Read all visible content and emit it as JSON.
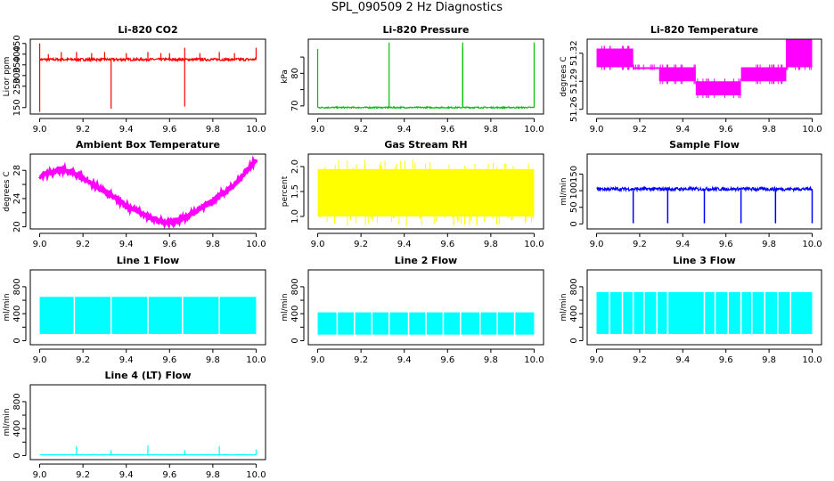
{
  "page": {
    "title": "SPL_090509  2 Hz Diagnostics"
  },
  "chart_data": [
    {
      "id": "co2",
      "type": "line",
      "title": "Li-820 CO2",
      "ylabel": "Licor ppm",
      "color": "#ff0000",
      "xlim": [
        9.0,
        10.0
      ],
      "ylim": [
        120,
        470
      ],
      "xticks": [
        9.0,
        9.2,
        9.4,
        9.6,
        9.8,
        10.0
      ],
      "xtick_labels": [
        "9.0",
        "9.2",
        "9.4",
        "9.6",
        "9.8",
        "10.0"
      ],
      "yticks": [
        150,
        250,
        300,
        350,
        400,
        450
      ],
      "ytick_labels": [
        "150",
        "250",
        "300",
        "350",
        "400",
        "450"
      ],
      "baseline": 375,
      "noise": 6,
      "spikes": [
        [
          9.0,
          450
        ],
        [
          9.0,
          130
        ],
        [
          9.04,
          400
        ],
        [
          9.1,
          410
        ],
        [
          9.17,
          410
        ],
        [
          9.24,
          405
        ],
        [
          9.3,
          410
        ],
        [
          9.33,
          145
        ],
        [
          9.4,
          405
        ],
        [
          9.5,
          410
        ],
        [
          9.56,
          405
        ],
        [
          9.6,
          405
        ],
        [
          9.67,
          155
        ],
        [
          9.67,
          430
        ],
        [
          9.74,
          405
        ],
        [
          9.83,
          410
        ],
        [
          9.9,
          405
        ],
        [
          10.0,
          430
        ]
      ]
    },
    {
      "id": "pressure",
      "type": "line",
      "title": "Li-820 Pressure",
      "ylabel": "kPa",
      "color": "#00c000",
      "xlim": [
        9.0,
        10.0
      ],
      "ylim": [
        67.5,
        90.5
      ],
      "xticks": [
        9.0,
        9.2,
        9.4,
        9.6,
        9.8,
        10.0
      ],
      "xtick_labels": [
        "9.0",
        "9.2",
        "9.4",
        "9.6",
        "9.8",
        "10.0"
      ],
      "yticks": [
        70,
        75,
        80,
        85
      ],
      "ytick_labels": [
        "70",
        "",
        "80",
        ""
      ],
      "baseline": 69.5,
      "noise": 0.2,
      "spikes": [
        [
          9.0,
          87.5
        ],
        [
          9.33,
          89.5
        ],
        [
          9.67,
          89.5
        ],
        [
          9.67,
          88
        ],
        [
          10.0,
          89.5
        ]
      ]
    },
    {
      "id": "licor-temp",
      "type": "area",
      "title": "Li-820 Temperature",
      "ylabel": "degrees C",
      "color": "#ff00ff",
      "xlim": [
        9.0,
        10.0
      ],
      "ylim": [
        51.255,
        51.335
      ],
      "xticks": [
        9.0,
        9.2,
        9.4,
        9.6,
        9.8,
        10.0
      ],
      "xtick_labels": [
        "9.0",
        "9.2",
        "9.4",
        "9.6",
        "9.8",
        "10.0"
      ],
      "yticks": [
        51.26,
        51.29,
        51.32
      ],
      "ytick_labels": [
        "51.26",
        "51.29",
        "51.32"
      ],
      "bands": [
        [
          9.0,
          9.17,
          51.305,
          51.325
        ],
        [
          9.17,
          9.29,
          51.305,
          51.305
        ],
        [
          9.29,
          9.46,
          51.29,
          51.305
        ],
        [
          9.46,
          9.67,
          51.275,
          51.29
        ],
        [
          9.67,
          9.88,
          51.29,
          51.305
        ],
        [
          9.88,
          10.0,
          51.305,
          51.335
        ]
      ]
    },
    {
      "id": "box-temp",
      "type": "line",
      "title": "Ambient Box Temperature",
      "ylabel": "degrees C",
      "color": "#ff00ff",
      "xlim": [
        9.0,
        10.0
      ],
      "ylim": [
        19.7,
        30.3
      ],
      "xticks": [
        9.0,
        9.2,
        9.4,
        9.6,
        9.8,
        10.0
      ],
      "xtick_labels": [
        "9.0",
        "9.2",
        "9.4",
        "9.6",
        "9.8",
        "10.0"
      ],
      "yticks": [
        20,
        22,
        24,
        26,
        28
      ],
      "ytick_labels": [
        "20",
        "",
        "24",
        "",
        "28"
      ],
      "points": [
        [
          9.0,
          27.0
        ],
        [
          9.05,
          27.8
        ],
        [
          9.1,
          28.1
        ],
        [
          9.15,
          27.7
        ],
        [
          9.2,
          26.9
        ],
        [
          9.3,
          25.0
        ],
        [
          9.4,
          23.0
        ],
        [
          9.5,
          21.4
        ],
        [
          9.55,
          20.8
        ],
        [
          9.6,
          20.6
        ],
        [
          9.65,
          21.0
        ],
        [
          9.7,
          21.8
        ],
        [
          9.8,
          23.6
        ],
        [
          9.9,
          26.0
        ],
        [
          10.0,
          29.5
        ]
      ],
      "noise": 0.25
    },
    {
      "id": "rh",
      "type": "area",
      "title": "Gas Stream RH",
      "ylabel": "percent",
      "color": "#ffff00",
      "xlim": [
        9.0,
        10.0
      ],
      "ylim": [
        0.75,
        2.25
      ],
      "xticks": [
        9.0,
        9.2,
        9.4,
        9.6,
        9.8,
        10.0
      ],
      "xtick_labels": [
        "9.0",
        "9.2",
        "9.4",
        "9.6",
        "9.8",
        "10.0"
      ],
      "yticks": [
        1.0,
        1.5,
        2.0
      ],
      "ytick_labels": [
        "1.0",
        "1.5",
        "2.0"
      ],
      "band_low": 1.0,
      "band_high": 1.95,
      "extreme_low": 0.8,
      "extreme_high": 2.15
    },
    {
      "id": "sample-flow",
      "type": "line",
      "title": "Sample Flow",
      "ylabel": "ml/min",
      "color": "#0000ff",
      "xlim": [
        9.0,
        10.0
      ],
      "ylim": [
        -15,
        210
      ],
      "xticks": [
        9.0,
        9.2,
        9.4,
        9.6,
        9.8,
        10.0
      ],
      "xtick_labels": [
        "9.0",
        "9.2",
        "9.4",
        "9.6",
        "9.8",
        "10.0"
      ],
      "yticks": [
        0,
        50,
        100,
        150
      ],
      "ytick_labels": [
        "0",
        "50",
        "100",
        "150"
      ],
      "baseline": 105,
      "noise": 5,
      "dips": [
        9.17,
        9.33,
        9.5,
        9.67,
        9.83,
        10.0
      ],
      "dip_value": 2
    },
    {
      "id": "line1",
      "type": "area",
      "title": "Line 1 Flow",
      "ylabel": "ml/min",
      "color": "#00ffff",
      "xlim": [
        9.0,
        10.0
      ],
      "ylim": [
        -60,
        1050
      ],
      "xticks": [
        9.0,
        9.2,
        9.4,
        9.6,
        9.8,
        10.0
      ],
      "xtick_labels": [
        "9.0",
        "9.2",
        "9.4",
        "9.6",
        "9.8",
        "10.0"
      ],
      "yticks": [
        0,
        200,
        400,
        600,
        800
      ],
      "ytick_labels": [
        "0",
        "",
        "400",
        "",
        "800"
      ],
      "band_low": 100,
      "band_high": 650,
      "gaps": [
        9.16,
        9.33,
        9.5,
        9.66,
        9.83
      ]
    },
    {
      "id": "line2",
      "type": "area",
      "title": "Line 2 Flow",
      "ylabel": "ml/min",
      "color": "#00ffff",
      "xlim": [
        9.0,
        10.0
      ],
      "ylim": [
        -60,
        1050
      ],
      "xticks": [
        9.0,
        9.2,
        9.4,
        9.6,
        9.8,
        10.0
      ],
      "xtick_labels": [
        "9.0",
        "9.2",
        "9.4",
        "9.6",
        "9.8",
        "10.0"
      ],
      "yticks": [
        0,
        200,
        400,
        600,
        800
      ],
      "ytick_labels": [
        "0",
        "",
        "400",
        "",
        "800"
      ],
      "band_low": 90,
      "band_high": 420,
      "gaps": [
        9.09,
        9.17,
        9.25,
        9.33,
        9.42,
        9.5,
        9.58,
        9.66,
        9.75,
        9.83,
        9.91
      ]
    },
    {
      "id": "line3",
      "type": "area",
      "title": "Line 3 Flow",
      "ylabel": "ml/min",
      "color": "#00ffff",
      "xlim": [
        9.0,
        10.0
      ],
      "ylim": [
        -60,
        1050
      ],
      "xticks": [
        9.0,
        9.2,
        9.4,
        9.6,
        9.8,
        10.0
      ],
      "xtick_labels": [
        "9.0",
        "9.2",
        "9.4",
        "9.6",
        "9.8",
        "10.0"
      ],
      "yticks": [
        0,
        200,
        400,
        600,
        800
      ],
      "ytick_labels": [
        "0",
        "",
        "400",
        "",
        "800"
      ],
      "band_low": 100,
      "band_high": 720,
      "gaps": [
        9.06,
        9.12,
        9.17,
        9.22,
        9.28,
        9.33,
        9.5,
        9.55,
        9.61,
        9.67,
        9.72,
        9.78,
        9.84,
        9.9
      ]
    },
    {
      "id": "line4",
      "type": "line",
      "title": "Line 4 (LT) Flow",
      "ylabel": "ml/min",
      "color": "#00ffff",
      "xlim": [
        9.0,
        10.0
      ],
      "ylim": [
        -60,
        1050
      ],
      "xticks": [
        9.0,
        9.2,
        9.4,
        9.6,
        9.8,
        10.0
      ],
      "xtick_labels": [
        "9.0",
        "9.2",
        "9.4",
        "9.6",
        "9.8",
        "10.0"
      ],
      "yticks": [
        0,
        200,
        400,
        600,
        800
      ],
      "ytick_labels": [
        "0",
        "",
        "400",
        "",
        "800"
      ],
      "baseline": 12,
      "noise": 3,
      "spikes": [
        [
          9.17,
          140
        ],
        [
          9.33,
          80
        ],
        [
          9.5,
          150
        ],
        [
          9.67,
          80
        ],
        [
          9.83,
          140
        ],
        [
          10.0,
          90
        ]
      ]
    }
  ]
}
